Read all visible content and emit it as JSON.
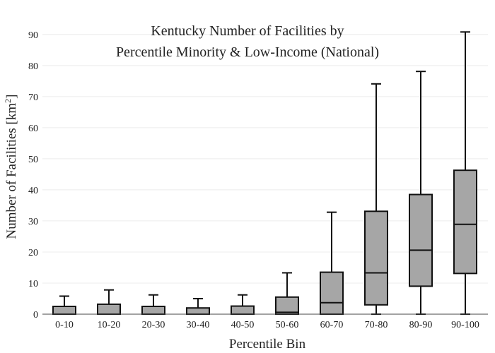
{
  "chart_data": {
    "type": "box",
    "title_lines": [
      "Kentucky Number of Facilities by",
      "Percentile Minority & Low-Income (National)"
    ],
    "xlabel": "Percentile Bin",
    "ylabel_main": "Number of Facilities  [km",
    "ylabel_sup": "2",
    "ylabel_end": "]",
    "ylim": [
      0,
      92
    ],
    "yticks": [
      "0",
      "10",
      "20",
      "30",
      "40",
      "50",
      "60",
      "70",
      "80",
      "90"
    ],
    "ytick_values": [
      0,
      10,
      20,
      30,
      40,
      50,
      60,
      70,
      80,
      90
    ],
    "grid": true,
    "box_color": "#a6a6a6",
    "line_color": "#111111",
    "categories": [
      "0-10",
      "10-20",
      "20-30",
      "30-40",
      "40-50",
      "50-60",
      "60-70",
      "70-80",
      "80-90",
      "90-100"
    ],
    "boxes": [
      {
        "min": 0,
        "q1": 0,
        "median": 0,
        "q3": 2.5,
        "max": 5.8
      },
      {
        "min": 0,
        "q1": 0,
        "median": 0,
        "q3": 3.2,
        "max": 7.8
      },
      {
        "min": 0,
        "q1": 0,
        "median": 0,
        "q3": 2.5,
        "max": 6.2
      },
      {
        "min": 0,
        "q1": 0,
        "median": 0,
        "q3": 2.0,
        "max": 5.0
      },
      {
        "min": 0,
        "q1": 0,
        "median": 0,
        "q3": 2.6,
        "max": 6.2
      },
      {
        "min": 0,
        "q1": 0,
        "median": 0.6,
        "q3": 5.5,
        "max": 13.3
      },
      {
        "min": 0,
        "q1": 0,
        "median": 3.7,
        "q3": 13.5,
        "max": 32.8
      },
      {
        "min": 0,
        "q1": 3.0,
        "median": 13.3,
        "q3": 33.1,
        "max": 74.1
      },
      {
        "min": 0,
        "q1": 9.0,
        "median": 20.6,
        "q3": 38.5,
        "max": 78.1
      },
      {
        "min": 0,
        "q1": 13.1,
        "median": 28.9,
        "q3": 46.3,
        "max": 90.8
      }
    ]
  }
}
